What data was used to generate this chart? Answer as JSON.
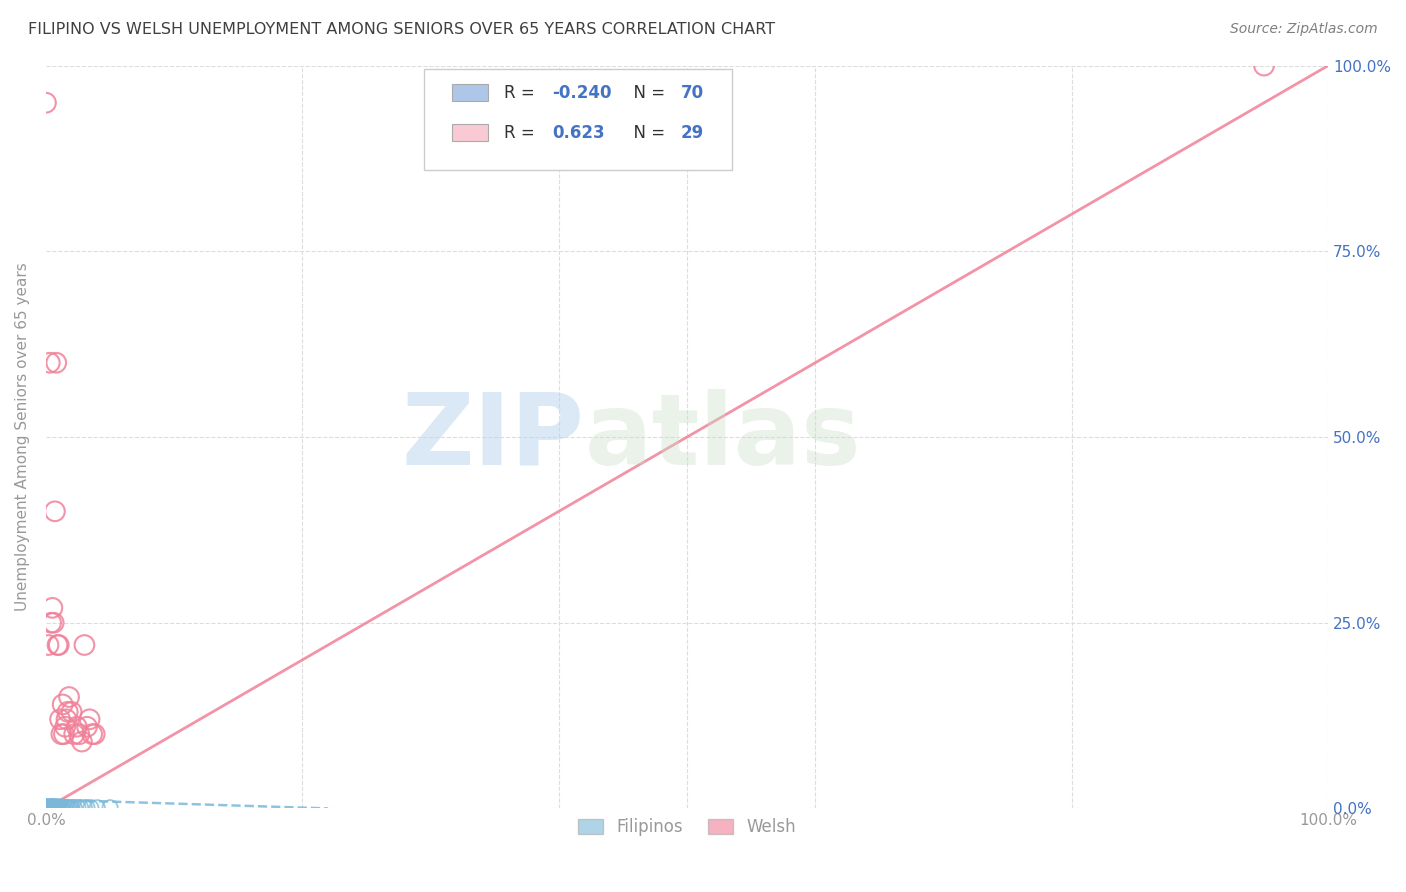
{
  "title": "FILIPINO VS WELSH UNEMPLOYMENT AMONG SENIORS OVER 65 YEARS CORRELATION CHART",
  "source": "Source: ZipAtlas.com",
  "ylabel": "Unemployment Among Seniors over 65 years",
  "xlim": [
    0.0,
    1.0
  ],
  "ylim": [
    0.0,
    1.0
  ],
  "ytick_values": [
    0.0,
    0.25,
    0.5,
    0.75,
    1.0
  ],
  "xtick_values": [
    0.0,
    0.2,
    0.4,
    0.6,
    0.8,
    1.0
  ],
  "legend_entries": [
    {
      "color": "#aec6e8"
    },
    {
      "color": "#f9c9d4"
    }
  ],
  "filipino_color": "#7ab8d9",
  "welsh_color": "#f08098",
  "watermark_zip": "ZIP",
  "watermark_atlas": "atlas",
  "background_color": "#ffffff",
  "grid_color": "#dddddd",
  "left_tick_color": "#999999",
  "right_tick_color": "#4472c4",
  "title_color": "#404040",
  "source_color": "#808080",
  "filipino_scatter_x": [
    0.0,
    0.0,
    0.0,
    0.0,
    0.0,
    0.0,
    0.0,
    0.0,
    0.0,
    0.0,
    0.0,
    0.0,
    0.0,
    0.0,
    0.0,
    0.0,
    0.0,
    0.0,
    0.002,
    0.002,
    0.002,
    0.002,
    0.002,
    0.003,
    0.003,
    0.003,
    0.003,
    0.004,
    0.004,
    0.004,
    0.004,
    0.004,
    0.005,
    0.005,
    0.005,
    0.005,
    0.005,
    0.005,
    0.006,
    0.006,
    0.007,
    0.007,
    0.007,
    0.007,
    0.008,
    0.008,
    0.008,
    0.009,
    0.009,
    0.01,
    0.01,
    0.011,
    0.012,
    0.012,
    0.013,
    0.014,
    0.015,
    0.016,
    0.017,
    0.018,
    0.019,
    0.02,
    0.022,
    0.025,
    0.027,
    0.03,
    0.032,
    0.035,
    0.04,
    0.05
  ],
  "filipino_scatter_y": [
    0.0,
    0.0,
    0.0,
    0.0,
    0.0,
    0.0,
    0.0,
    0.0,
    0.0,
    0.0,
    0.0,
    0.001,
    0.001,
    0.001,
    0.001,
    0.002,
    0.002,
    0.002,
    0.0,
    0.0,
    0.001,
    0.001,
    0.002,
    0.0,
    0.001,
    0.001,
    0.002,
    0.0,
    0.001,
    0.001,
    0.002,
    0.002,
    0.0,
    0.0,
    0.001,
    0.001,
    0.002,
    0.002,
    0.001,
    0.002,
    0.0,
    0.001,
    0.001,
    0.002,
    0.001,
    0.001,
    0.002,
    0.001,
    0.002,
    0.001,
    0.002,
    0.001,
    0.001,
    0.002,
    0.001,
    0.001,
    0.001,
    0.001,
    0.001,
    0.001,
    0.001,
    0.001,
    0.001,
    0.001,
    0.001,
    0.001,
    0.001,
    0.001,
    0.001,
    0.001
  ],
  "welsh_scatter_x": [
    0.0,
    0.002,
    0.003,
    0.004,
    0.005,
    0.006,
    0.007,
    0.008,
    0.009,
    0.01,
    0.011,
    0.012,
    0.013,
    0.014,
    0.015,
    0.016,
    0.017,
    0.018,
    0.02,
    0.022,
    0.024,
    0.026,
    0.028,
    0.03,
    0.032,
    0.034,
    0.036,
    0.038,
    0.95
  ],
  "welsh_scatter_y": [
    0.95,
    0.22,
    0.6,
    0.25,
    0.27,
    0.25,
    0.4,
    0.6,
    0.22,
    0.22,
    0.12,
    0.1,
    0.14,
    0.1,
    0.11,
    0.12,
    0.13,
    0.15,
    0.13,
    0.1,
    0.11,
    0.1,
    0.09,
    0.22,
    0.11,
    0.12,
    0.1,
    0.1,
    1.0
  ],
  "filipino_trend_x": [
    0.0,
    0.22
  ],
  "filipino_trend_y": [
    0.012,
    0.0
  ],
  "welsh_trend_x": [
    0.0,
    1.0
  ],
  "welsh_trend_y": [
    0.0,
    1.0
  ]
}
